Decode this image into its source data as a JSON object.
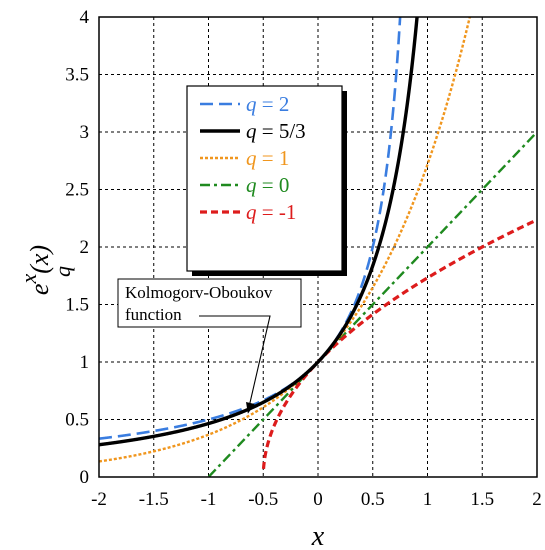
{
  "chart_data": {
    "type": "line",
    "xlabel": "x",
    "ylabel_main": "e",
    "ylabel_sup": "x",
    "ylabel_sub": "q",
    "ylabel_tail": "(x)",
    "xlim": [
      -2,
      2
    ],
    "ylim": [
      0,
      4
    ],
    "x_ticks": [
      -2,
      -1.5,
      -1,
      -0.5,
      0,
      0.5,
      1,
      1.5,
      2
    ],
    "y_ticks": [
      0,
      0.5,
      1,
      1.5,
      2,
      2.5,
      3,
      3.5,
      4
    ],
    "x_tick_labels": [
      "-2",
      "-1.5",
      "-1",
      "-0.5",
      "0",
      "0.5",
      "1",
      "1.5",
      "2"
    ],
    "y_tick_labels": [
      "0",
      "0.5",
      "1",
      "1.5",
      "2",
      "2.5",
      "3",
      "3.5",
      "4"
    ],
    "grid": true,
    "legend_position": "upper-center",
    "series": [
      {
        "name": "q = 2",
        "q_label": "q",
        "q_value": "2",
        "q": 2,
        "color": "#3a7de0",
        "dash": "13,6",
        "width": 2.6
      },
      {
        "name": "q = 5/3",
        "q_label": "q",
        "q_value": "5/3",
        "q": 1.6667,
        "color": "#000000",
        "dash": "",
        "width": 3.4
      },
      {
        "name": "q = 1",
        "q_label": "q",
        "q_value": "1",
        "q": 1,
        "color": "#f0961e",
        "dash": "3,2",
        "width": 2.4
      },
      {
        "name": "q = 0",
        "q_label": "q",
        "q_value": "0",
        "q": 0,
        "color": "#1f8a1f",
        "dash": "10,4,3,4",
        "width": 2.4
      },
      {
        "name": "q = -1",
        "q_label": "q",
        "q_value": "-1",
        "q": -1,
        "color": "#dd1c1c",
        "dash": "7,4",
        "width": 3.2
      }
    ],
    "annotation": {
      "line1": "Kolmogorv-Oboukov",
      "line2": "function",
      "target_x": -0.64,
      "target_y": 0.55
    }
  }
}
